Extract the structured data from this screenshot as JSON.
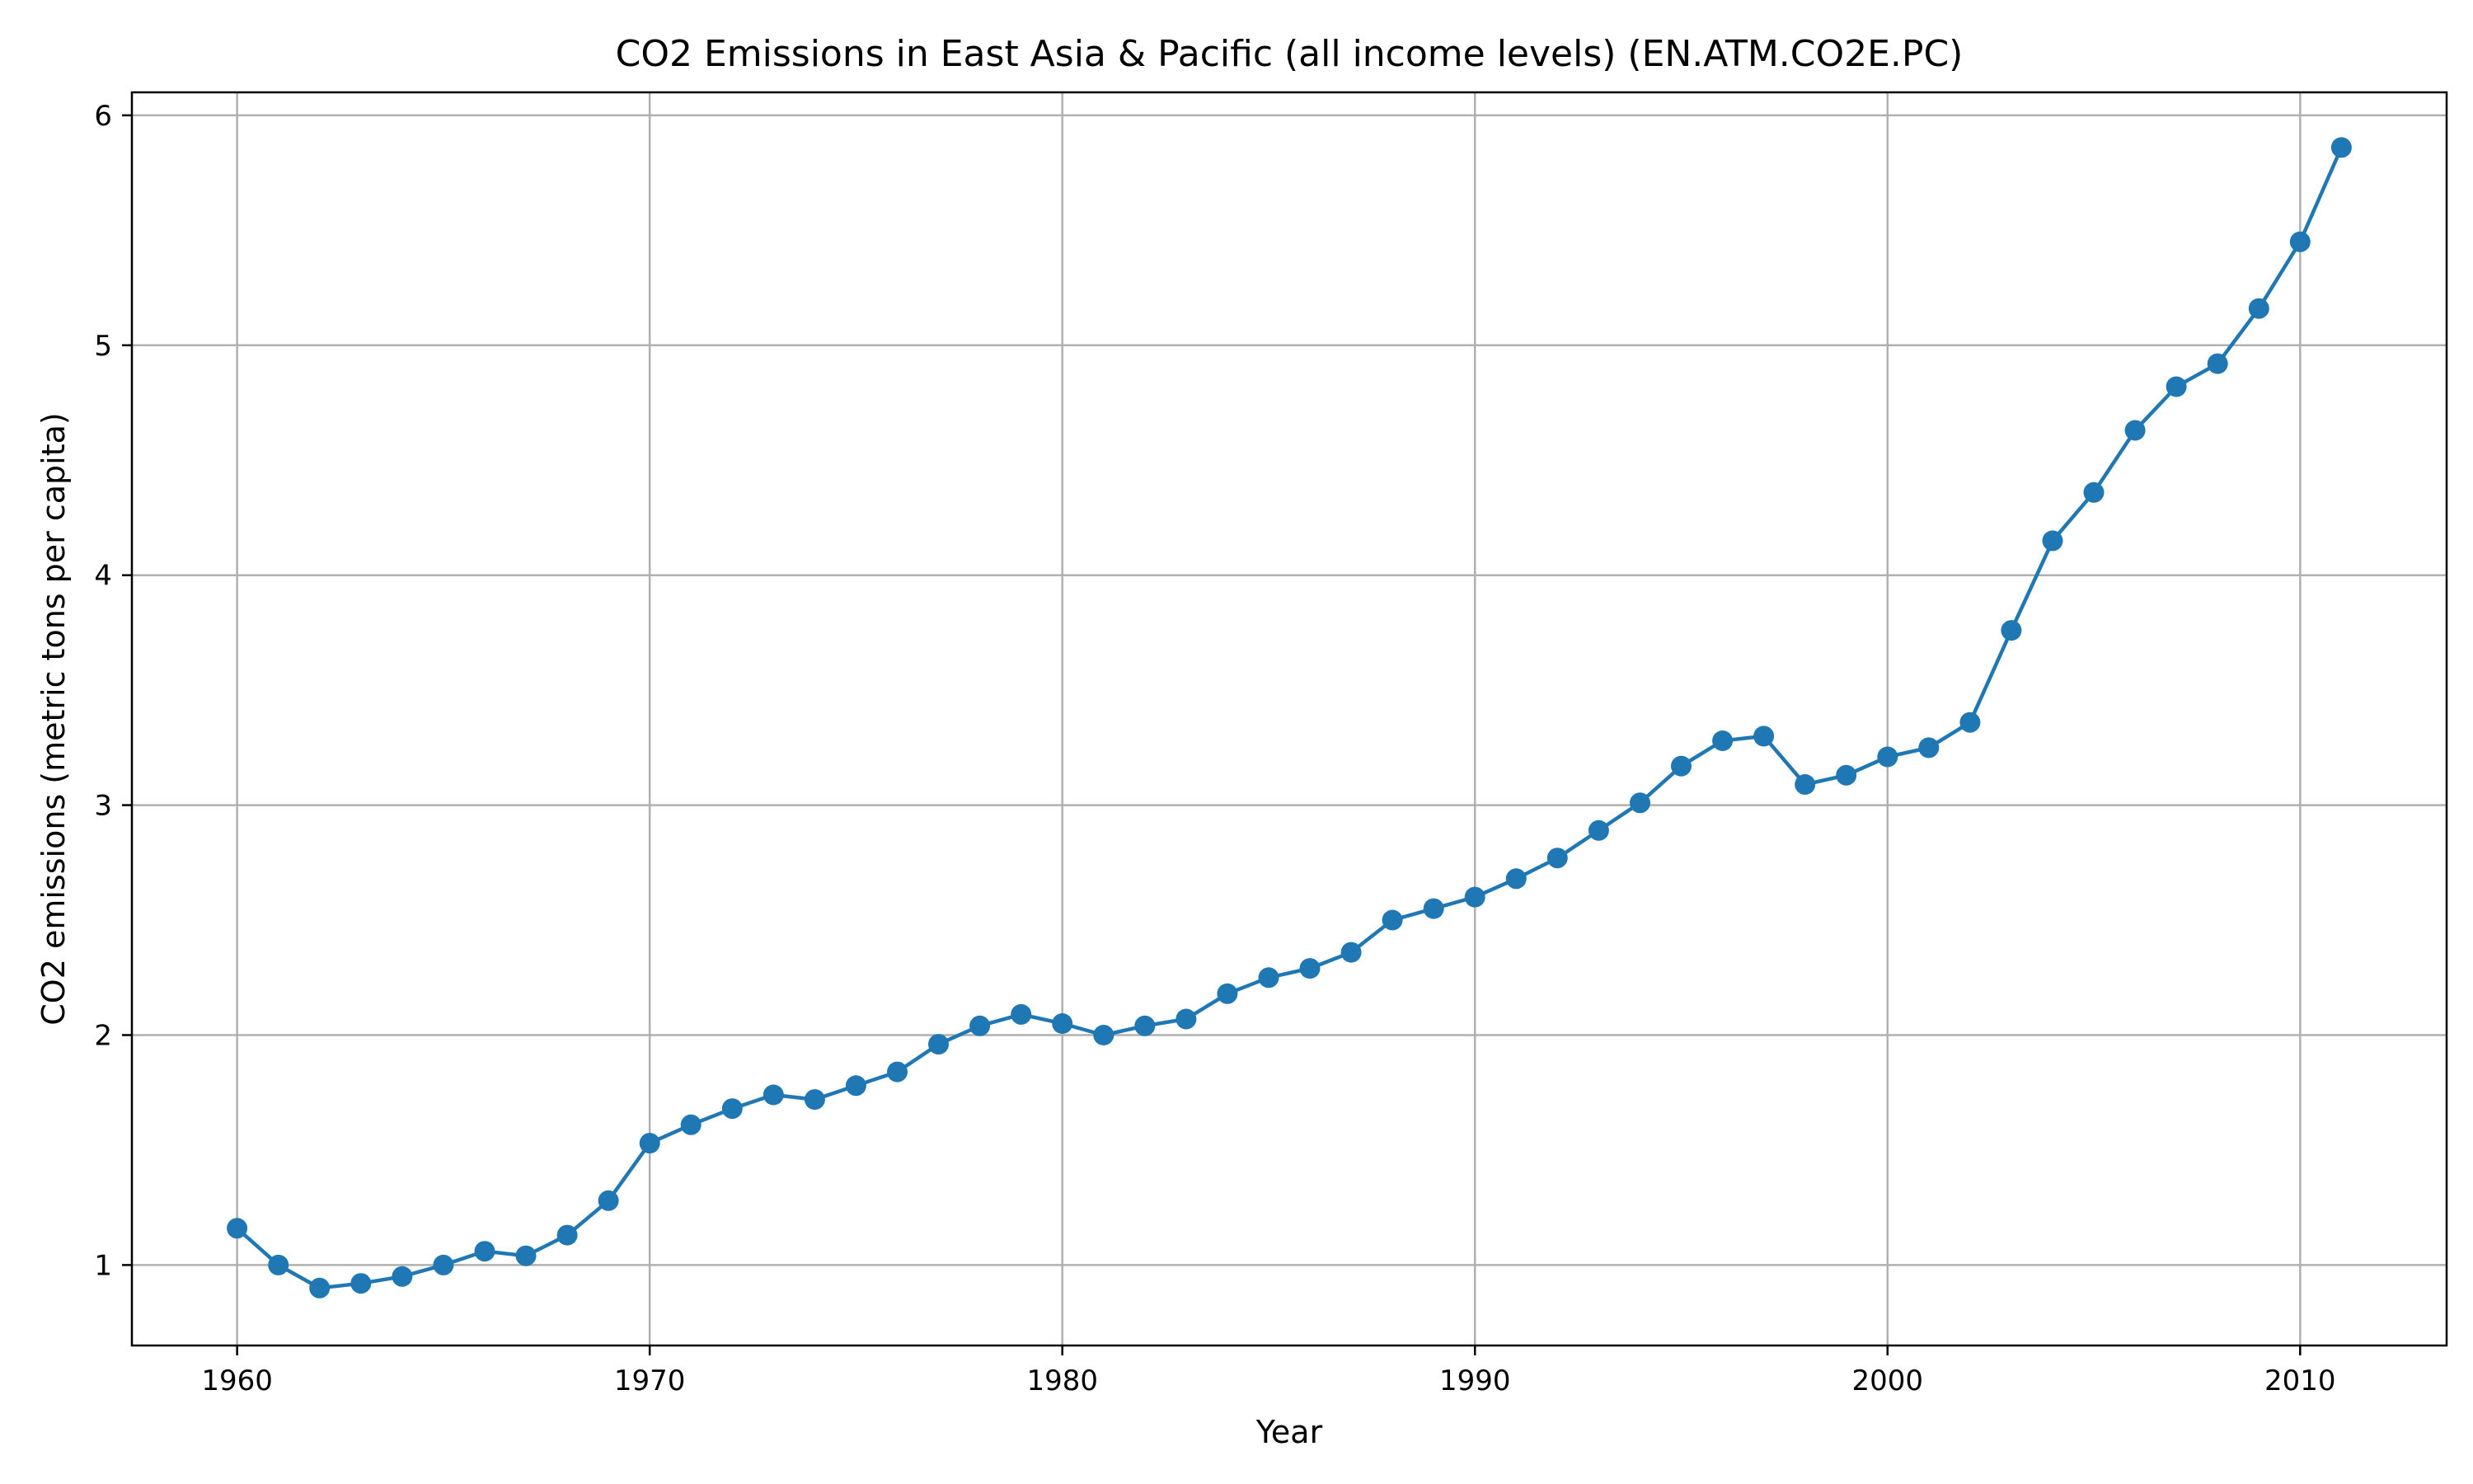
{
  "chart_data": {
    "type": "line",
    "title": "CO2 Emissions in East Asia & Pacific (all income levels) (EN.ATM.CO2E.PC)",
    "xlabel": "Year",
    "ylabel": "CO2 emissions (metric tons per capita)",
    "xlim": [
      1957.45,
      2013.55
    ],
    "ylim": [
      0.65,
      6.1
    ],
    "xticks": [
      1960,
      1970,
      1980,
      1990,
      2000,
      2010
    ],
    "yticks": [
      1,
      2,
      3,
      4,
      5,
      6
    ],
    "grid": true,
    "line_color": "#1f77b4",
    "marker": "circle",
    "x": [
      1960,
      1961,
      1962,
      1963,
      1964,
      1965,
      1966,
      1967,
      1968,
      1969,
      1970,
      1971,
      1972,
      1973,
      1974,
      1975,
      1976,
      1977,
      1978,
      1979,
      1980,
      1981,
      1982,
      1983,
      1984,
      1985,
      1986,
      1987,
      1988,
      1989,
      1990,
      1991,
      1992,
      1993,
      1994,
      1995,
      1996,
      1997,
      1998,
      1999,
      2000,
      2001,
      2002,
      2003,
      2004,
      2005,
      2006,
      2007,
      2008,
      2009,
      2010,
      2011
    ],
    "y": [
      1.16,
      1.0,
      0.9,
      0.92,
      0.95,
      1.0,
      1.06,
      1.04,
      1.13,
      1.28,
      1.53,
      1.61,
      1.68,
      1.74,
      1.72,
      1.78,
      1.84,
      1.96,
      2.04,
      2.09,
      2.05,
      2.0,
      2.04,
      2.07,
      2.18,
      2.25,
      2.29,
      2.36,
      2.5,
      2.55,
      2.6,
      2.68,
      2.77,
      2.89,
      3.01,
      3.17,
      3.28,
      3.3,
      3.09,
      3.13,
      3.21,
      3.25,
      3.36,
      3.76,
      4.15,
      4.36,
      4.63,
      4.82,
      4.92,
      5.16,
      5.45,
      5.86
    ]
  }
}
